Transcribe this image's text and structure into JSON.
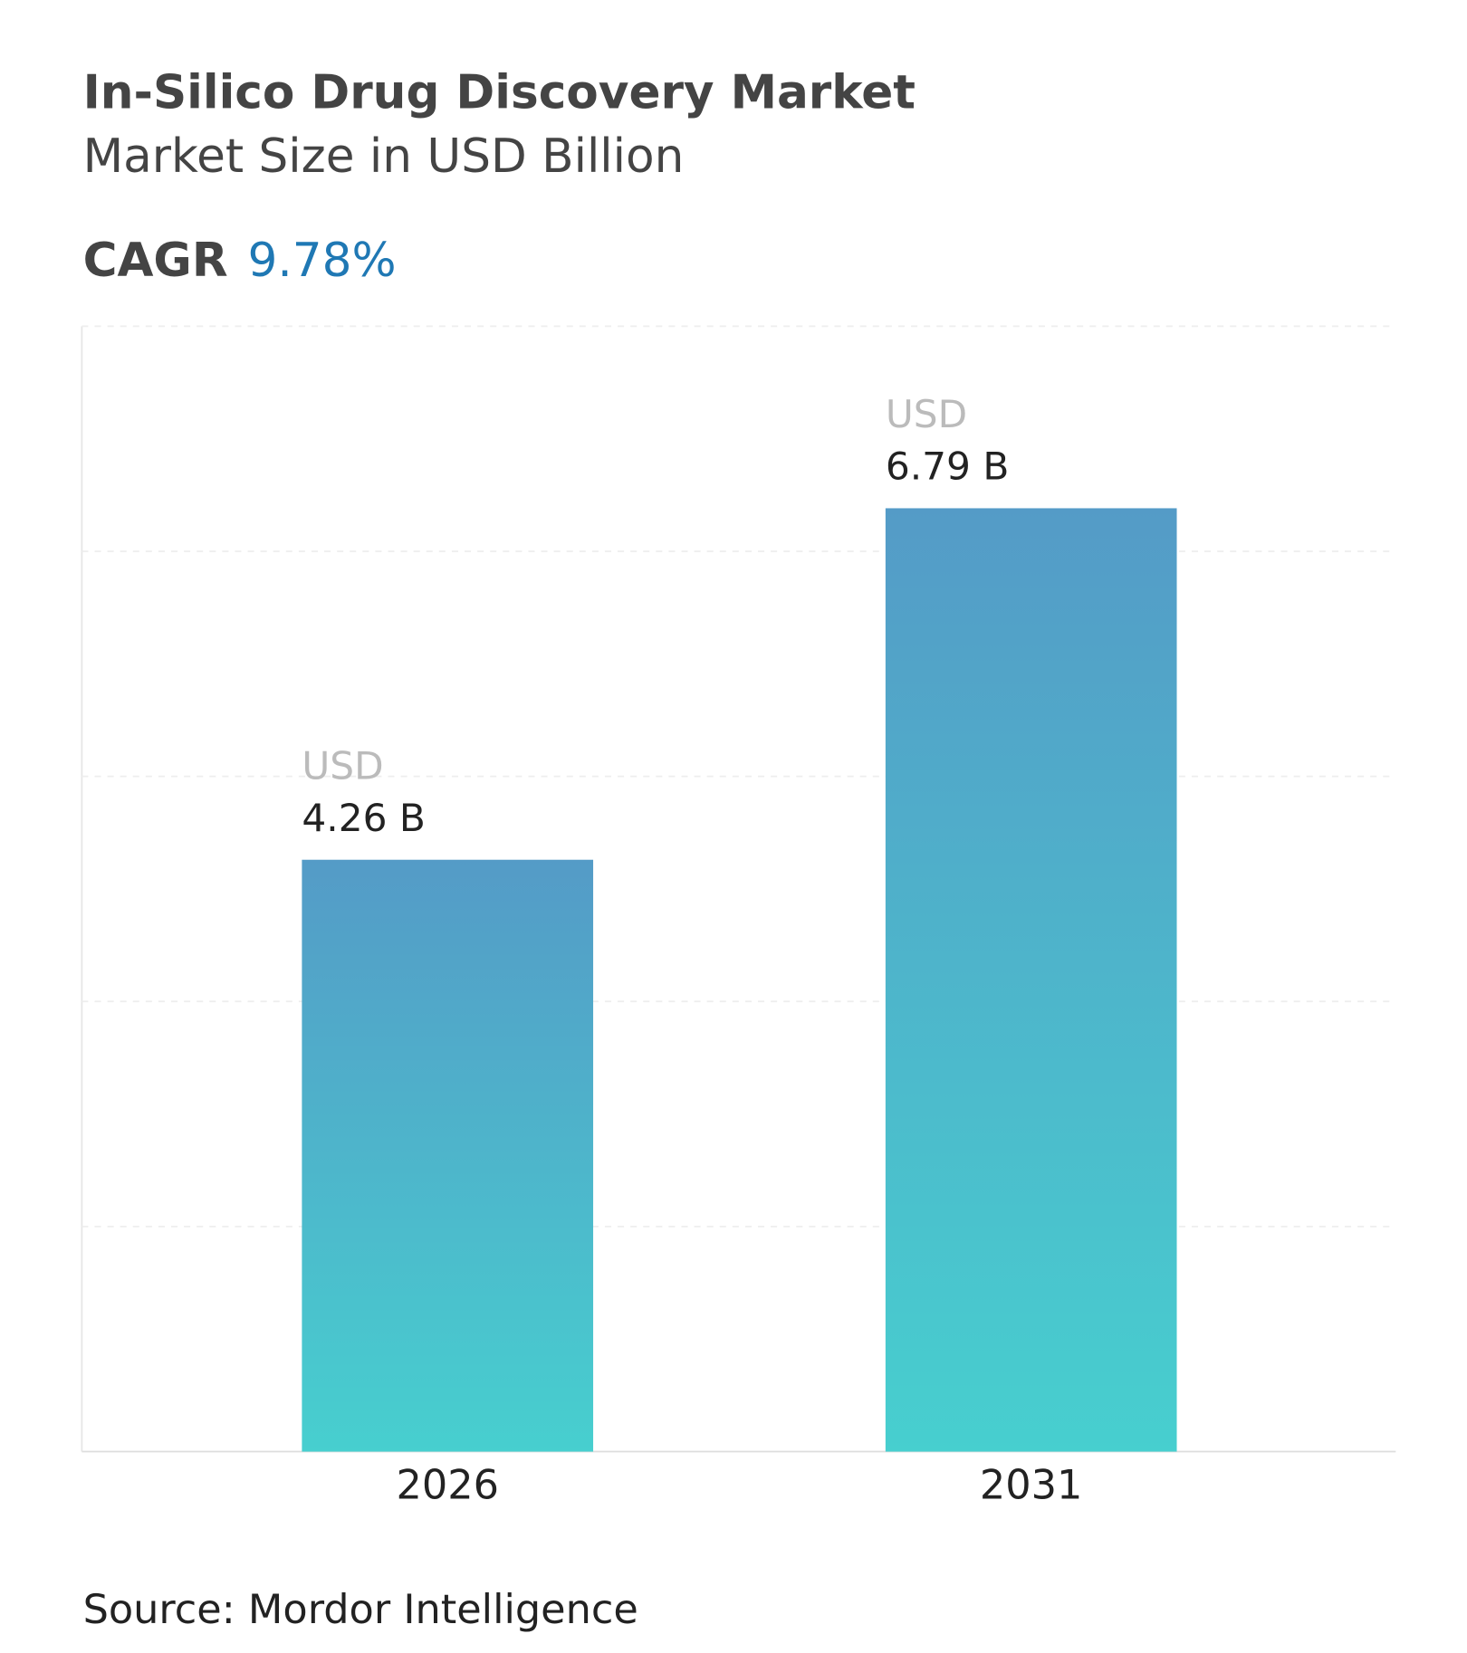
{
  "chart_data": {
    "type": "bar",
    "title": "In-Silico Drug Discovery Market",
    "subtitle": "Market Size in USD Billion",
    "cagr_label": "CAGR",
    "cagr_value": "9.78%",
    "categories": [
      "2026",
      "2031"
    ],
    "values": [
      4.26,
      6.79
    ],
    "value_labels": [
      "4.26 B",
      "6.79 B"
    ],
    "value_label_prefix": "USD",
    "color": {
      "top": "#549bc7",
      "bottom": "#47cfcf"
    },
    "ylim": [
      0,
      8.1
    ],
    "yticks": [
      0,
      1.62,
      3.24,
      4.86,
      6.48,
      8.1
    ],
    "grid": true,
    "source": "Source: Mordor Intelligence"
  }
}
